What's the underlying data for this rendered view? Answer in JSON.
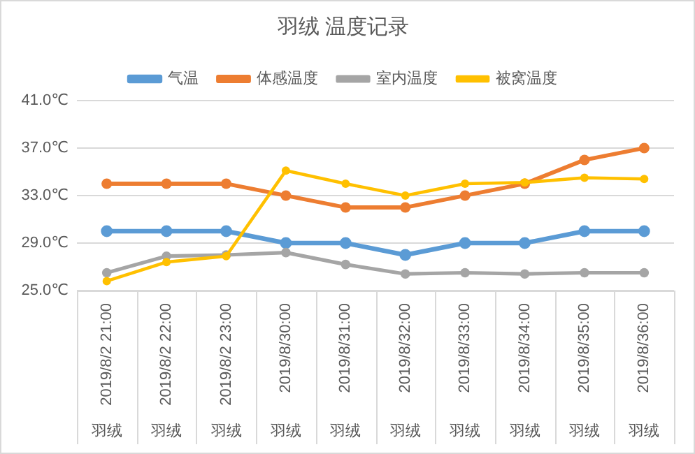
{
  "chart_data": {
    "type": "line",
    "title": "羽绒 温度记录",
    "categories": [
      "2019/8/2 21:00\n羽绒",
      "2019/8/2 22:00\n羽绒",
      "2019/8/2 23:00\n羽绒",
      "2019/8/30:00\n羽绒",
      "2019/8/31:00\n羽绒",
      "2019/8/32:00\n羽绒",
      "2019/8/33:00\n羽绒",
      "2019/8/34:00\n羽绒",
      "2019/8/35:00\n羽绒",
      "2019/8/36:00\n羽绒"
    ],
    "series": [
      {
        "name": "气温",
        "color": "#5b9bd5",
        "values": [
          30,
          30,
          30,
          29,
          29,
          28,
          29,
          29,
          30,
          30
        ]
      },
      {
        "name": "体感温度",
        "color": "#ed7d31",
        "values": [
          34,
          34,
          34,
          33,
          32,
          32,
          33,
          34,
          36,
          37
        ]
      },
      {
        "name": "室内温度",
        "color": "#a5a5a5",
        "values": [
          26.5,
          27.9,
          28,
          28.2,
          27.2,
          26.4,
          26.5,
          26.4,
          26.5,
          26.5
        ]
      },
      {
        "name": "被窝温度",
        "color": "#ffc000",
        "values": [
          25.8,
          27.4,
          27.9,
          35.1,
          34,
          33,
          34,
          34.1,
          34.5,
          34.4
        ]
      }
    ],
    "ylim": [
      25,
      41
    ],
    "yticks": [
      {
        "value": 25,
        "label": "25.0℃"
      },
      {
        "value": 29,
        "label": "29.0℃"
      },
      {
        "value": 33,
        "label": "33.0℃"
      },
      {
        "value": 37,
        "label": "37.0℃"
      },
      {
        "value": 41,
        "label": "41.0℃"
      }
    ],
    "grid": "y",
    "legend": "top",
    "marker": "circle",
    "line_style": "solid"
  }
}
